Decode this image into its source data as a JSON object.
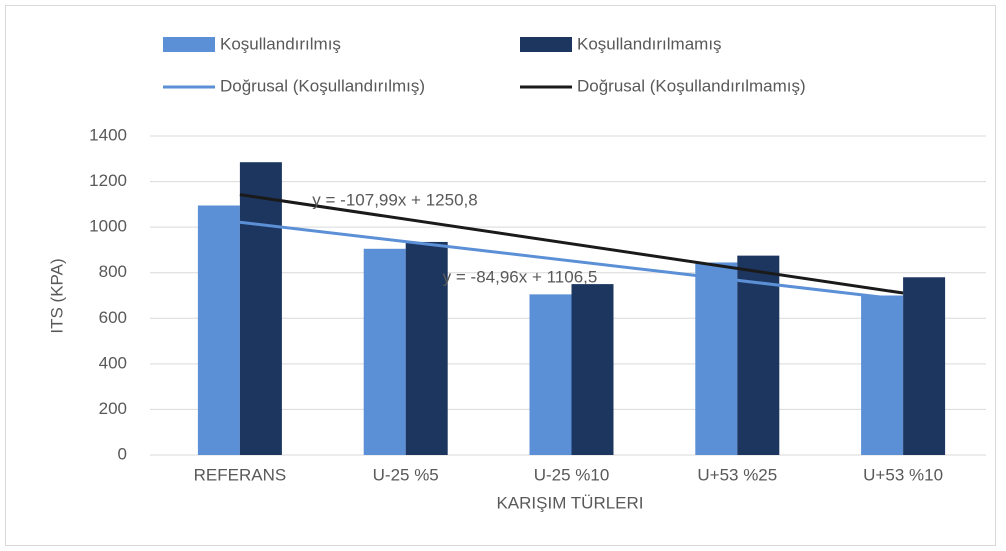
{
  "chart_data": {
    "type": "bar",
    "x_label": "KARIŞIM TÜRLERI",
    "y_label": "ITS (KPA)",
    "categories": [
      "REFERANS",
      "U-25 %5",
      "U-25 %10",
      "U+53 %25",
      "U+53 %10"
    ],
    "series": [
      {
        "name": "Koşullandırılmış",
        "color": "#5b8fd6",
        "values": [
          1095,
          905,
          705,
          845,
          700
        ]
      },
      {
        "name": "Koşullandırılmamış",
        "color": "#1d3660",
        "values": [
          1285,
          935,
          750,
          875,
          780
        ]
      }
    ],
    "trendlines": [
      {
        "name": "Doğrusal (Koşullandırılmış)",
        "color": "#5b8fd6",
        "equation": "y = -84,96x + 1106,5",
        "slope": -84.96,
        "intercept": 1106.5
      },
      {
        "name": "Doğrusal (Koşullandırılmamış)",
        "color": "#1a1a1a",
        "equation": "y = -107,99x + 1250,8",
        "slope": -107.99,
        "intercept": 1250.8
      }
    ],
    "ylim": [
      0,
      1400
    ],
    "yticks": [
      0,
      200,
      400,
      600,
      800,
      1000,
      1200,
      1400
    ],
    "grid": true,
    "legend": "top"
  }
}
